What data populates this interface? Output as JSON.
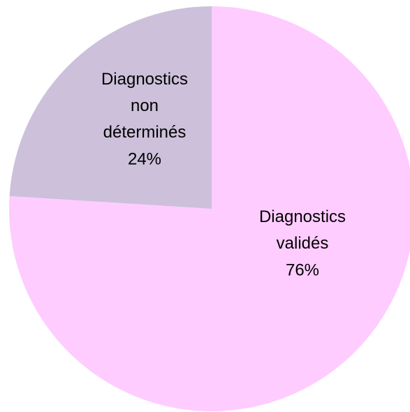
{
  "chart_data": {
    "type": "pie",
    "categories": [
      "Diagnostics validés",
      "Diagnostics non déterminés"
    ],
    "values": [
      76,
      24
    ],
    "value_labels": [
      "76%",
      "24%"
    ],
    "colors": [
      "#ffccff",
      "#ccc0da"
    ]
  }
}
